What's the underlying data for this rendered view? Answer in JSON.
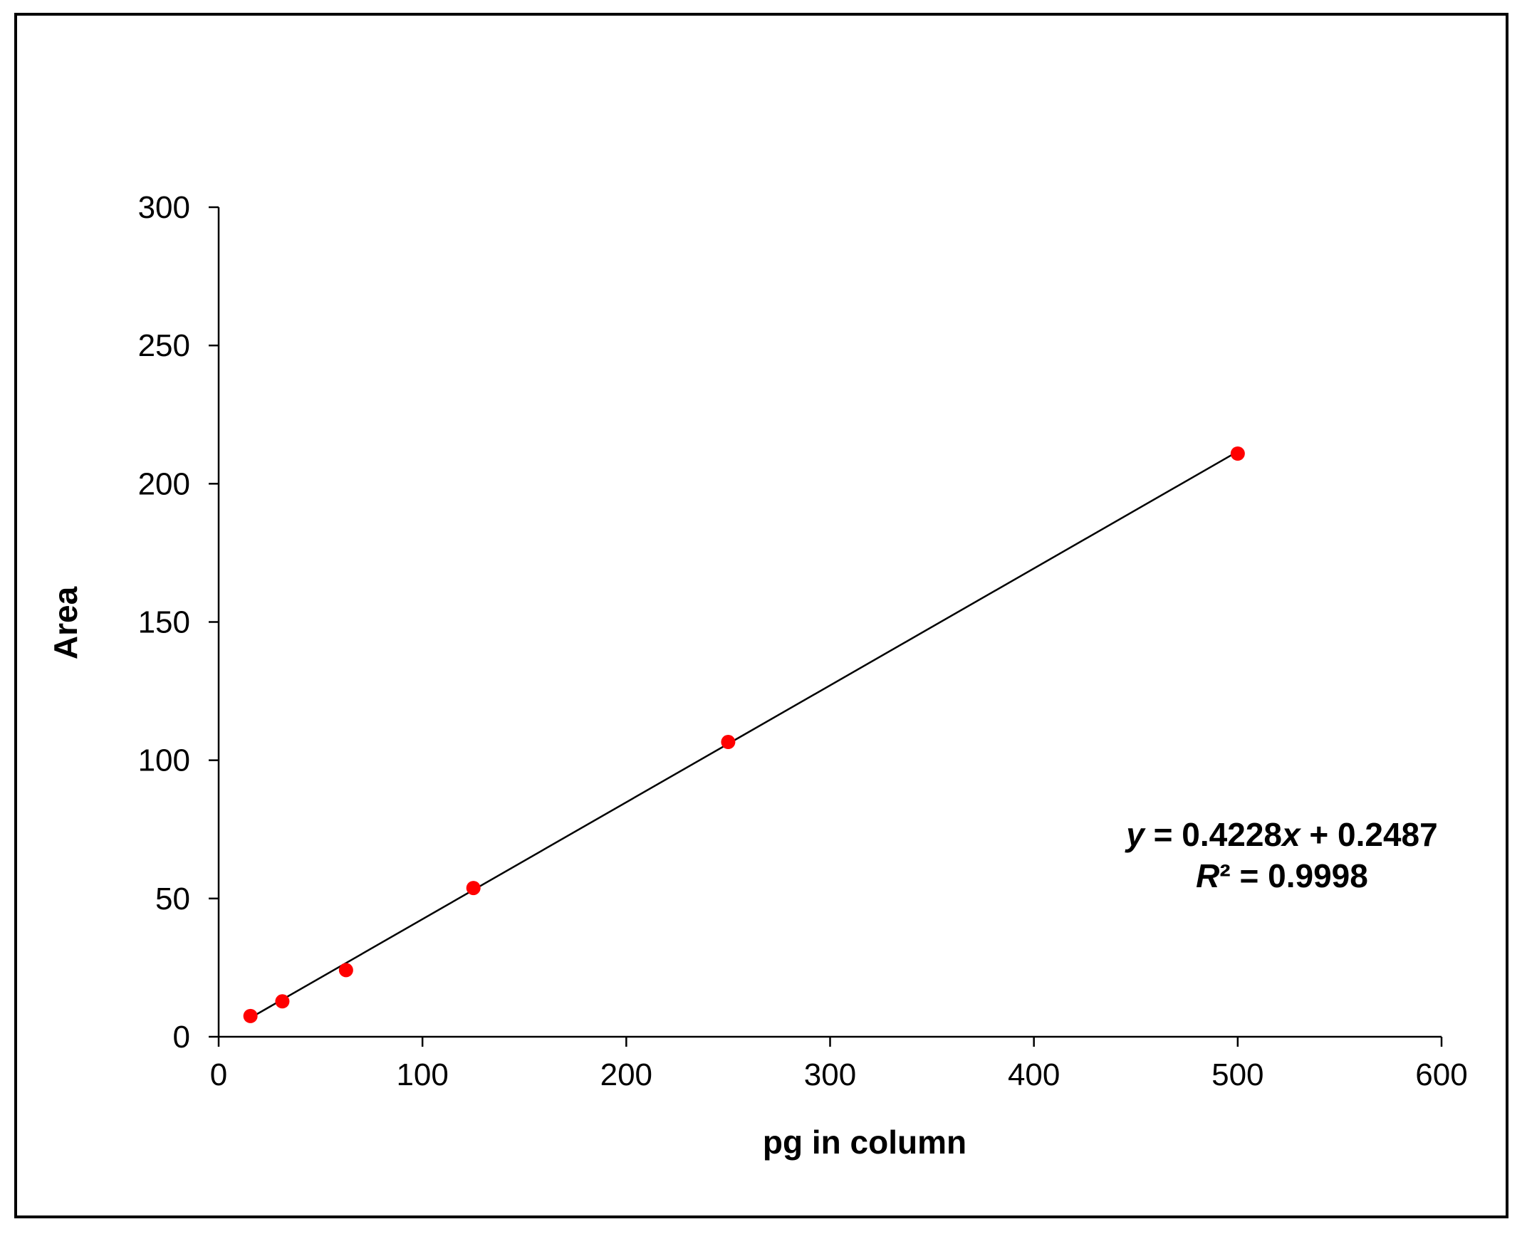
{
  "chart_data": {
    "type": "scatter",
    "title": "",
    "xlabel": "pg in column",
    "ylabel": "Area",
    "xlim": [
      0,
      600
    ],
    "ylim": [
      0,
      300
    ],
    "xticks": [
      0,
      100,
      200,
      300,
      400,
      500,
      600
    ],
    "yticks": [
      0,
      50,
      100,
      150,
      200,
      250,
      300
    ],
    "xtick_labels": [
      "0",
      "100",
      "200",
      "300",
      "400",
      "500",
      "600"
    ],
    "ytick_labels": [
      "0",
      "50",
      "100",
      "150",
      "200",
      "250",
      "300"
    ],
    "grid": false,
    "legend": "none",
    "series": [
      {
        "x": [
          15.6,
          31.25,
          62.5,
          125,
          250,
          500
        ],
        "y": [
          7.5,
          12.8,
          24.1,
          53.8,
          106.6,
          210.9
        ],
        "color": "#ff0000"
      }
    ],
    "trendline": {
      "type": "linear",
      "slope": 0.4228,
      "intercept": 0.2487,
      "x_range": [
        15.6,
        500
      ],
      "color": "#000000"
    },
    "annotation": {
      "eq_y": "y",
      "eq_mid": " = 0.4228",
      "eq_x": "x",
      "eq_end": " + 0.2487",
      "r2_r": "R",
      "r2_rest": "² = 0.9998"
    }
  }
}
